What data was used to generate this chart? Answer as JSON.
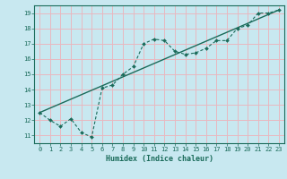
{
  "xlabel": "Humidex (Indice chaleur)",
  "xlim": [
    -0.5,
    23.5
  ],
  "ylim": [
    10.5,
    19.5
  ],
  "xticks": [
    0,
    1,
    2,
    3,
    4,
    5,
    6,
    7,
    8,
    9,
    10,
    11,
    12,
    13,
    14,
    15,
    16,
    17,
    18,
    19,
    20,
    21,
    22,
    23
  ],
  "yticks": [
    11,
    12,
    13,
    14,
    15,
    16,
    17,
    18,
    19
  ],
  "bg_color": "#c8e8f0",
  "line_color": "#1a6b5a",
  "grid_color": "#e8b8c0",
  "curve_x": [
    0,
    1,
    2,
    3,
    4,
    5,
    6,
    7,
    8,
    9,
    10,
    11,
    12,
    13,
    14,
    15,
    16,
    17,
    18,
    19,
    20,
    21,
    22,
    23
  ],
  "curve_y": [
    12.5,
    12.0,
    11.6,
    12.1,
    11.2,
    10.9,
    14.1,
    14.3,
    15.0,
    15.5,
    17.0,
    17.3,
    17.2,
    16.5,
    16.3,
    16.4,
    16.7,
    17.2,
    17.2,
    18.0,
    18.2,
    19.0,
    19.0,
    19.2
  ],
  "line_x": [
    0,
    23
  ],
  "line_y": [
    12.5,
    19.2
  ],
  "xlabel_fontsize": 6.0,
  "tick_fontsize": 5.0
}
